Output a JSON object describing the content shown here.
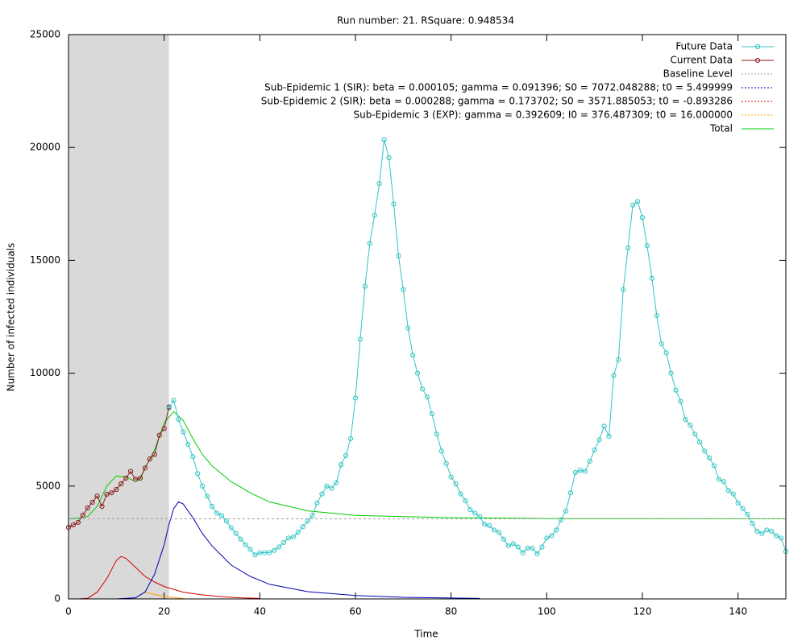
{
  "chart_data": {
    "type": "line",
    "title": "Run number: 21. RSquare: 0.948534",
    "xlabel": "Time",
    "ylabel": "Number of infected individuals",
    "xlim": [
      0,
      150
    ],
    "ylim": [
      0,
      25000
    ],
    "xticks": [
      0,
      20,
      40,
      60,
      80,
      100,
      120,
      140
    ],
    "yticks": [
      0,
      5000,
      10000,
      15000,
      20000,
      25000
    ],
    "shaded_x": [
      0,
      21
    ],
    "shade_color": "#d9d9d9",
    "legend": "upper right",
    "series": [
      {
        "name": "Future Data",
        "color": "#33c3c3",
        "style": "linespoints",
        "x": [
          21,
          22,
          23,
          24,
          25,
          26,
          27,
          28,
          29,
          30,
          31,
          32,
          33,
          34,
          35,
          36,
          37,
          38,
          39,
          40,
          41,
          42,
          43,
          44,
          45,
          46,
          47,
          48,
          49,
          50,
          51,
          52,
          53,
          54,
          55,
          56,
          57,
          58,
          59,
          60,
          61,
          62,
          63,
          64,
          65,
          66,
          67,
          68,
          69,
          70,
          71,
          72,
          73,
          74,
          75,
          76,
          77,
          78,
          79,
          80,
          81,
          82,
          83,
          84,
          85,
          86,
          87,
          88,
          89,
          90,
          91,
          92,
          93,
          94,
          95,
          96,
          97,
          98,
          99,
          100,
          101,
          102,
          103,
          104,
          105,
          106,
          107,
          108,
          109,
          110,
          111,
          112,
          113,
          114,
          115,
          116,
          117,
          118,
          119,
          120,
          121,
          122,
          123,
          124,
          125,
          126,
          127,
          128,
          129,
          130,
          131,
          132,
          133,
          134,
          135,
          136,
          137,
          138,
          139,
          140,
          141,
          142,
          143,
          144,
          145,
          146,
          147,
          148,
          149,
          150
        ],
        "values": [
          8450,
          8800,
          7950,
          7400,
          6850,
          6300,
          5550,
          5000,
          4550,
          4100,
          3800,
          3700,
          3450,
          3150,
          2900,
          2650,
          2400,
          2200,
          1950,
          2050,
          2050,
          2050,
          2150,
          2300,
          2500,
          2700,
          2750,
          2950,
          3200,
          3450,
          3700,
          4250,
          4650,
          5000,
          4900,
          5150,
          5950,
          6350,
          7100,
          8900,
          11500,
          13850,
          15750,
          17000,
          18400,
          20350,
          19550,
          17500,
          15200,
          13700,
          12000,
          10800,
          10000,
          9300,
          8950,
          8200,
          7300,
          6550,
          6000,
          5400,
          5100,
          4650,
          4350,
          3950,
          3800,
          3650,
          3300,
          3250,
          3050,
          2950,
          2650,
          2350,
          2450,
          2300,
          2050,
          2250,
          2250,
          2000,
          2300,
          2700,
          2800,
          3050,
          3500,
          3900,
          4700,
          5600,
          5700,
          5650,
          6100,
          6600,
          7050,
          7650,
          7200,
          9900,
          10600,
          13700,
          15550,
          17450,
          17600,
          16900,
          15650,
          14200,
          12550,
          11300,
          10900,
          10000,
          9250,
          8750,
          7950,
          7700,
          7300,
          6950,
          6550,
          6250,
          5900,
          5300,
          5200,
          4800,
          4650,
          4250,
          4000,
          3750,
          3350,
          3000,
          2900,
          3050,
          3000,
          2800,
          2700,
          2100
        ]
      },
      {
        "name": "Current Data",
        "color": "#8b1a1a",
        "style": "linespoints",
        "x": [
          0,
          1,
          2,
          3,
          4,
          5,
          6,
          7,
          8,
          9,
          10,
          11,
          12,
          13,
          14,
          15,
          16,
          17,
          18,
          19,
          20,
          21
        ],
        "values": [
          3170,
          3280,
          3390,
          3710,
          4030,
          4280,
          4560,
          4100,
          4640,
          4700,
          4850,
          5100,
          5350,
          5650,
          5300,
          5350,
          5800,
          6200,
          6400,
          7250,
          7550,
          8500
        ]
      },
      {
        "name": "Baseline Level",
        "color": "#a0a0a0",
        "style": "dashed",
        "x": [
          0,
          150
        ],
        "values": [
          3550,
          3550
        ]
      },
      {
        "name": "Sub-Epidemic 1 (SIR): beta = 0.000105; gamma = 0.091396; S0 = 7072.048288; t0 = 5.499999",
        "color": "#0000b0",
        "style": "lines",
        "legend_dotted": true,
        "x": [
          10,
          14,
          16,
          18,
          20,
          21,
          22,
          23,
          24,
          26,
          28,
          30,
          34,
          38,
          42,
          50,
          60,
          70,
          86
        ],
        "values": [
          0,
          50,
          300,
          1100,
          2400,
          3300,
          4000,
          4300,
          4200,
          3600,
          2900,
          2350,
          1500,
          1000,
          650,
          320,
          150,
          70,
          20
        ]
      },
      {
        "name": "Sub-Epidemic 2 (SIR): beta = 0.000288; gamma = 0.173702; S0 = 3571.885053; t0 = -0.893286",
        "color": "#d00000",
        "style": "lines",
        "legend_dotted": true,
        "x": [
          2,
          4,
          6,
          8,
          10,
          11,
          12,
          14,
          16,
          18,
          20,
          24,
          28,
          32,
          36,
          40
        ],
        "values": [
          0,
          30,
          300,
          900,
          1700,
          1880,
          1800,
          1400,
          1000,
          750,
          550,
          300,
          180,
          100,
          50,
          20
        ]
      },
      {
        "name": "Sub-Epidemic 3 (EXP): gamma = 0.392609; I0 = 376.487309; t0 = 16.000000",
        "color": "#ffa000",
        "style": "lines",
        "legend_dotted": true,
        "x": [
          16,
          18,
          20,
          22,
          24
        ],
        "values": [
          300,
          200,
          110,
          60,
          20
        ]
      },
      {
        "name": "Total",
        "color": "#00cc00",
        "style": "lines",
        "x": [
          0,
          2,
          4,
          6,
          8,
          10,
          12,
          14,
          15,
          16,
          18,
          20,
          22,
          24,
          26,
          28,
          30,
          34,
          38,
          42,
          46,
          50,
          60,
          70,
          80,
          100,
          150
        ],
        "values": [
          3550,
          3580,
          3650,
          4100,
          5000,
          5450,
          5400,
          5200,
          5300,
          5800,
          6600,
          7800,
          8300,
          7900,
          7100,
          6400,
          5900,
          5200,
          4700,
          4300,
          4100,
          3900,
          3700,
          3650,
          3600,
          3560,
          3550
        ]
      }
    ]
  }
}
